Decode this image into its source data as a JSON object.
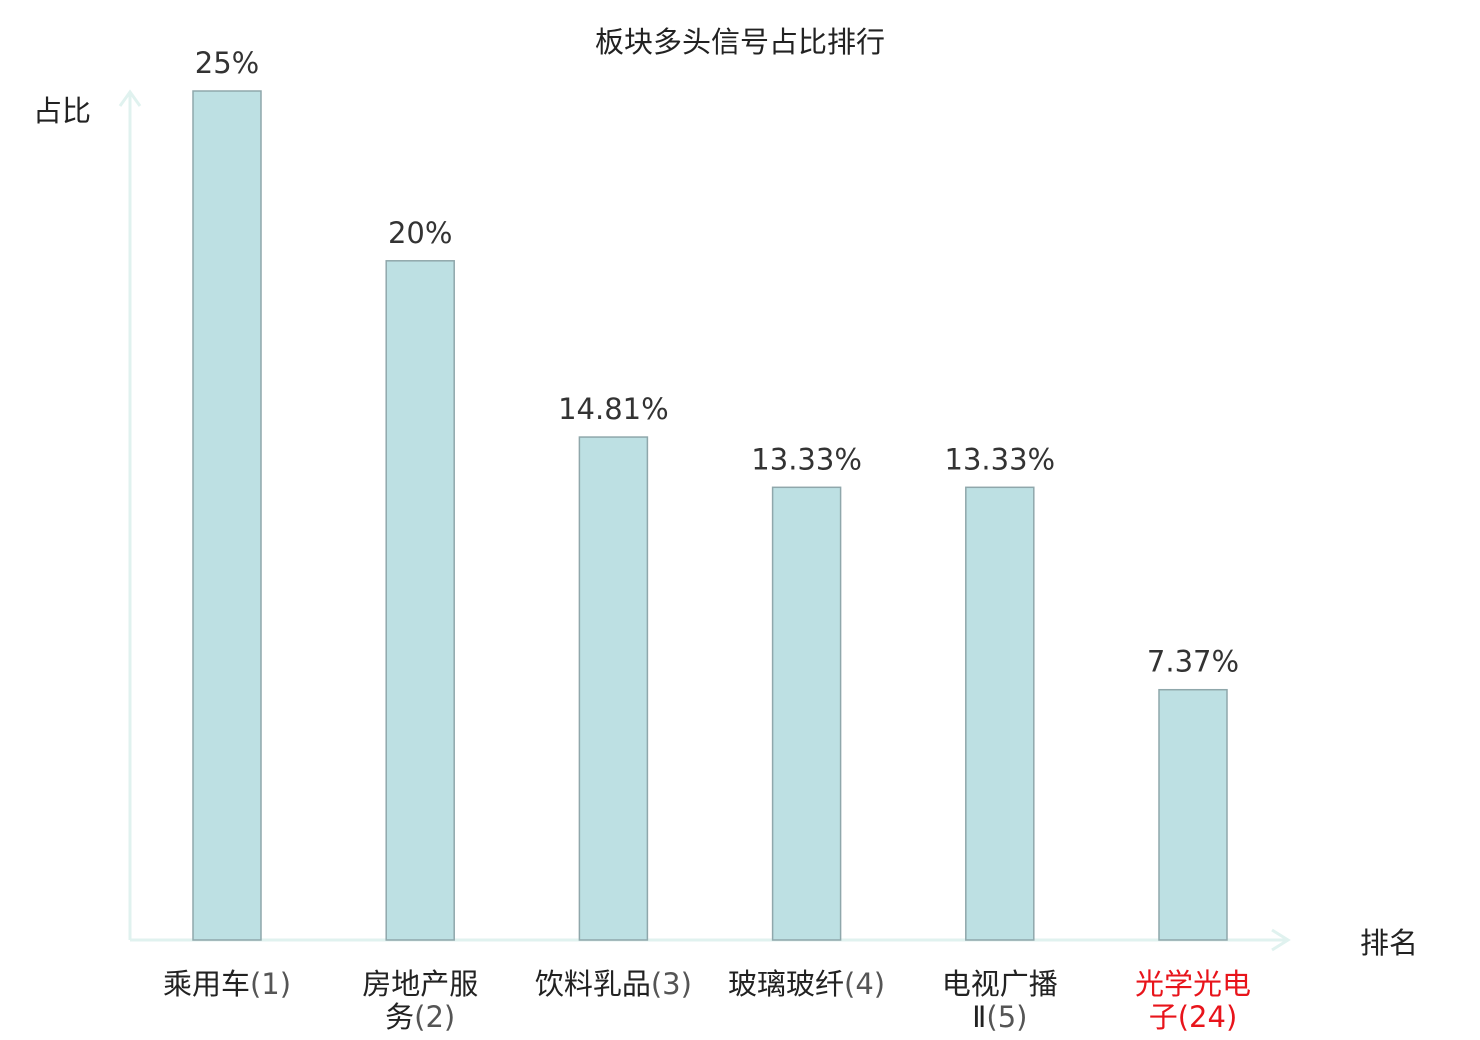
{
  "chart_data": {
    "type": "bar",
    "title": "板块多头信号占比排行",
    "ylabel": "占比",
    "xlabel": "排名",
    "ylim": [
      0,
      25
    ],
    "grid": false,
    "legend": "none",
    "bar_color": "#bde0e3",
    "bar_edge_color": "#8fa7ab",
    "axis_color": "#e0f2ef",
    "highlight_color": "#e8141b",
    "categories": [
      {
        "lines": [
          {
            "name": "乘用车",
            "num": "(1)"
          }
        ],
        "highlight": false
      },
      {
        "lines": [
          {
            "name": "房地产服",
            "num": ""
          },
          {
            "name": "务",
            "num": "(2)"
          }
        ],
        "highlight": false
      },
      {
        "lines": [
          {
            "name": "饮料乳品",
            "num": "(3)"
          }
        ],
        "highlight": false
      },
      {
        "lines": [
          {
            "name": "玻璃玻纤",
            "num": "(4)"
          }
        ],
        "highlight": false
      },
      {
        "lines": [
          {
            "name": "电视广播",
            "num": ""
          },
          {
            "name": "Ⅱ",
            "num": "(5)"
          }
        ],
        "highlight": false
      },
      {
        "lines": [
          {
            "name": "光学光电",
            "num": ""
          },
          {
            "name": "子",
            "num": "(24)"
          }
        ],
        "highlight": true
      }
    ],
    "values": [
      25,
      20,
      14.81,
      13.33,
      13.33,
      7.37
    ],
    "value_labels": [
      "25%",
      "20%",
      "14.81%",
      "13.33%",
      "13.33%",
      "7.37%"
    ]
  }
}
